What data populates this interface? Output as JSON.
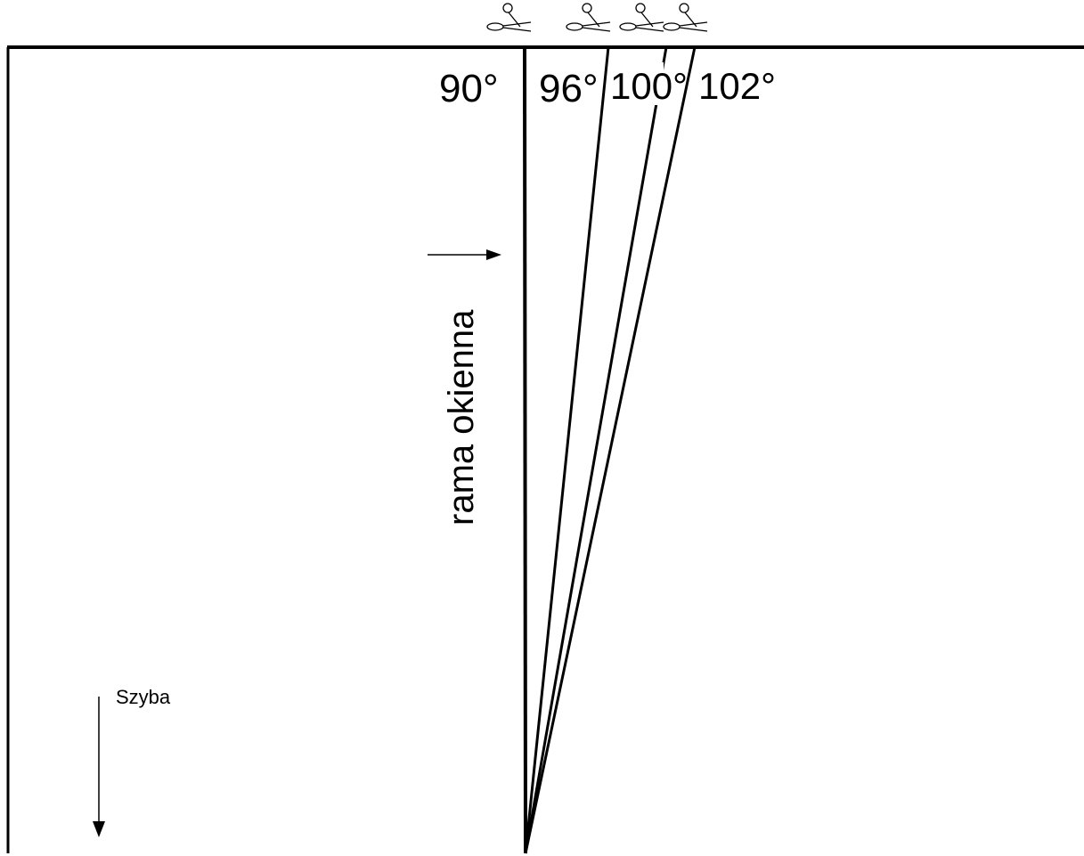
{
  "angles": [
    {
      "label": "90°",
      "degrees": 90
    },
    {
      "label": "96°",
      "degrees": 96
    },
    {
      "label": "100°",
      "degrees": 100
    },
    {
      "label": "102°",
      "degrees": 102
    }
  ],
  "frame_label": "rama okienna",
  "glass_label": "Szyba",
  "icons": [
    "scissors-icon",
    "arrow-right-icon",
    "arrow-down-icon"
  ],
  "colors": {
    "line": "#000000",
    "background": "#ffffff"
  }
}
